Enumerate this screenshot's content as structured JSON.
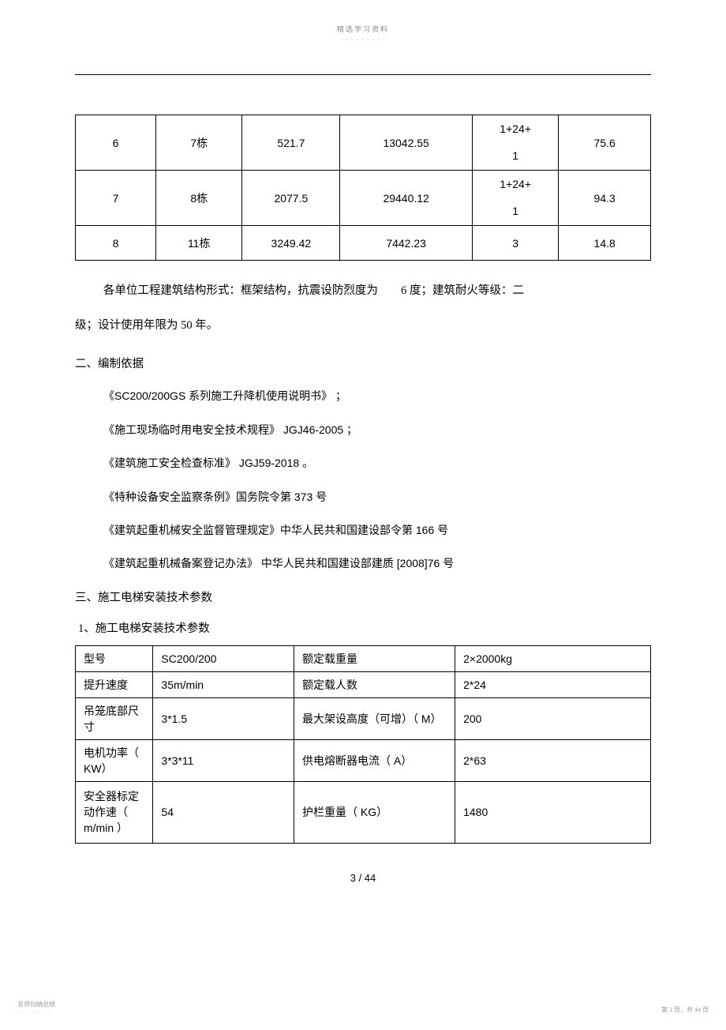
{
  "top_header": "精选学习资料",
  "top_dots": "- - - - - - - - -",
  "table1": {
    "col_widths": [
      "14%",
      "15%",
      "17%",
      "23%",
      "15%",
      "16%"
    ],
    "rows": [
      {
        "c0": "6",
        "c1": "7栋",
        "c2": "521.7",
        "c3": "13042.55",
        "c4_l1": "1+24+",
        "c4_l2": "1",
        "c5": "75.6",
        "multiline": true
      },
      {
        "c0": "7",
        "c1": "8栋",
        "c2": "2077.5",
        "c3": "29440.12",
        "c4_l1": "1+24+",
        "c4_l2": "1",
        "c5": "94.3",
        "multiline": true
      },
      {
        "c0": "8",
        "c1": "11栋",
        "c2": "3249.42",
        "c3": "7442.23",
        "c4": "3",
        "c5": "14.8",
        "multiline": false
      }
    ]
  },
  "para1_a": "各单位工程建筑结构形式：框架结构，抗震设防烈度为",
  "para1_b": "6 度；建筑耐火等级：二",
  "para2": "级；设计使用年限为   50 年。",
  "section2_title": "二、编制依据",
  "refs": [
    "《SC200/200GS     系列施工升降机使用说明书》 ；",
    "《施工现场临时用电安全技术规程》        JGJ46-2005  ；",
    "《建筑施工安全检查标准》       JGJ59-2018   。",
    "《特种设备安全监察条例》国务院令第         373  号",
    "《建筑起重机械安全监督管理规定》中华人民共和国建设部令第             166  号",
    "《建筑起重机械备案登记办法》        中华人民共和国建设部建质      [2008]76   号"
  ],
  "section3_title": "三、施工电梯安装技术参数",
  "section3_sub": "1、施工电梯安装技术参数",
  "table2": {
    "col_widths": [
      "13.5%",
      "24.5%",
      "28%",
      "34%"
    ],
    "rows": [
      {
        "c0": "型号",
        "c1": "SC200/200",
        "c2": "额定载重量",
        "c3": "2×2000kg",
        "h": ""
      },
      {
        "c0": "提升速度",
        "c1": "35m/min",
        "c2": "额定载人数",
        "c3": "2*24",
        "h": ""
      },
      {
        "c0": "吊笼底部尺寸",
        "c1": "3*1.5",
        "c2": "最大架设高度（可增）（ M）",
        "c3": "200",
        "h": "tall"
      },
      {
        "c0": "电机功率（ KW）",
        "c1": "3*3*11",
        "c2": "供电熔断器电流（    A）",
        "c3": "2*63",
        "h": "tall"
      },
      {
        "c0": "安全器标定动作速（ m/min ）",
        "c1": "54",
        "c2": "护栏重量（  KG）",
        "c3": "1480",
        "h": "taller"
      }
    ]
  },
  "page_num": "3 / 44",
  "footer_left": "名师归纳总结",
  "footer_left_dots": "- - - - - - -",
  "footer_right": "第  3  页，共  44  页"
}
